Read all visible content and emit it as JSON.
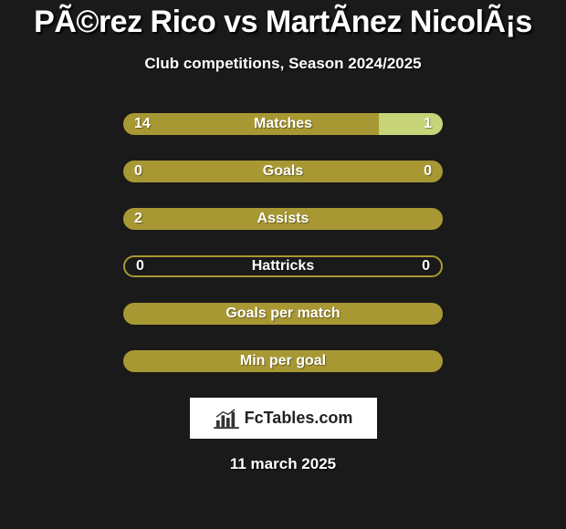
{
  "title": "PÃ©rez Rico vs MartÃnez NicolÃ¡s",
  "subtitle": "Club competitions, Season 2024/2025",
  "colors": {
    "background": "#1a1a1a",
    "bar_primary": "#a89833",
    "bar_secondary": "#c8d478",
    "avatar_white": "#ffffff",
    "text": "#ffffff"
  },
  "stats": [
    {
      "label": "Matches",
      "left_value": "14",
      "right_value": "1",
      "left_pct": 80,
      "right_pct": 20,
      "hollow": false,
      "show_avatars": true,
      "avatar_left_color": "#ffffff",
      "avatar_right_color": "#ffffff"
    },
    {
      "label": "Goals",
      "left_value": "0",
      "right_value": "0",
      "left_pct": 100,
      "right_pct": 0,
      "hollow": false,
      "show_avatars": true,
      "avatar_left_color": "#ffffff",
      "avatar_right_color": "#ffffff"
    },
    {
      "label": "Assists",
      "left_value": "2",
      "right_value": "",
      "left_pct": 100,
      "right_pct": 0,
      "hollow": false,
      "show_avatars": false
    },
    {
      "label": "Hattricks",
      "left_value": "0",
      "right_value": "0",
      "left_pct": 0,
      "right_pct": 0,
      "hollow": true,
      "show_avatars": false
    },
    {
      "label": "Goals per match",
      "left_value": "",
      "right_value": "",
      "left_pct": 100,
      "right_pct": 0,
      "hollow": false,
      "show_avatars": false
    },
    {
      "label": "Min per goal",
      "left_value": "",
      "right_value": "",
      "left_pct": 100,
      "right_pct": 0,
      "hollow": false,
      "show_avatars": false
    }
  ],
  "logo": {
    "text": "FcTables.com"
  },
  "date": "11 march 2025",
  "typography": {
    "title_fontsize": 34,
    "subtitle_fontsize": 17,
    "label_fontsize": 16,
    "date_fontsize": 17
  }
}
